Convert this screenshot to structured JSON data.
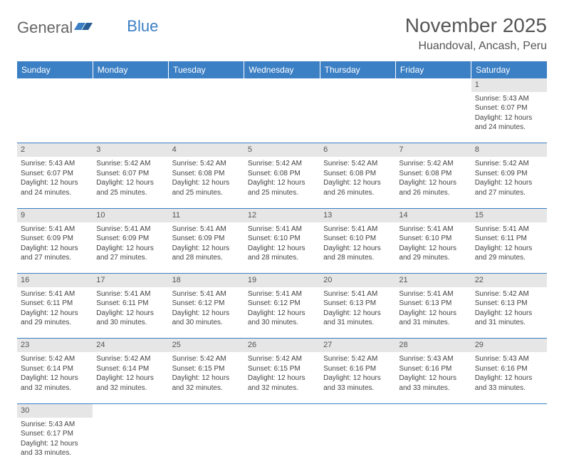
{
  "logo": {
    "general": "General",
    "blue": "Blue"
  },
  "title": "November 2025",
  "location": "Huandoval, Ancash, Peru",
  "colors": {
    "header_bg": "#3b7fc4",
    "header_text": "#ffffff",
    "daynum_bg": "#e6e6e6",
    "border": "#3b7fc4",
    "text": "#444444"
  },
  "weekdays": [
    "Sunday",
    "Monday",
    "Tuesday",
    "Wednesday",
    "Thursday",
    "Friday",
    "Saturday"
  ],
  "weeks": [
    [
      null,
      null,
      null,
      null,
      null,
      null,
      {
        "n": "1",
        "sr": "Sunrise: 5:43 AM",
        "ss": "Sunset: 6:07 PM",
        "dl": "Daylight: 12 hours and 24 minutes."
      }
    ],
    [
      {
        "n": "2",
        "sr": "Sunrise: 5:43 AM",
        "ss": "Sunset: 6:07 PM",
        "dl": "Daylight: 12 hours and 24 minutes."
      },
      {
        "n": "3",
        "sr": "Sunrise: 5:42 AM",
        "ss": "Sunset: 6:07 PM",
        "dl": "Daylight: 12 hours and 25 minutes."
      },
      {
        "n": "4",
        "sr": "Sunrise: 5:42 AM",
        "ss": "Sunset: 6:08 PM",
        "dl": "Daylight: 12 hours and 25 minutes."
      },
      {
        "n": "5",
        "sr": "Sunrise: 5:42 AM",
        "ss": "Sunset: 6:08 PM",
        "dl": "Daylight: 12 hours and 25 minutes."
      },
      {
        "n": "6",
        "sr": "Sunrise: 5:42 AM",
        "ss": "Sunset: 6:08 PM",
        "dl": "Daylight: 12 hours and 26 minutes."
      },
      {
        "n": "7",
        "sr": "Sunrise: 5:42 AM",
        "ss": "Sunset: 6:08 PM",
        "dl": "Daylight: 12 hours and 26 minutes."
      },
      {
        "n": "8",
        "sr": "Sunrise: 5:42 AM",
        "ss": "Sunset: 6:09 PM",
        "dl": "Daylight: 12 hours and 27 minutes."
      }
    ],
    [
      {
        "n": "9",
        "sr": "Sunrise: 5:41 AM",
        "ss": "Sunset: 6:09 PM",
        "dl": "Daylight: 12 hours and 27 minutes."
      },
      {
        "n": "10",
        "sr": "Sunrise: 5:41 AM",
        "ss": "Sunset: 6:09 PM",
        "dl": "Daylight: 12 hours and 27 minutes."
      },
      {
        "n": "11",
        "sr": "Sunrise: 5:41 AM",
        "ss": "Sunset: 6:09 PM",
        "dl": "Daylight: 12 hours and 28 minutes."
      },
      {
        "n": "12",
        "sr": "Sunrise: 5:41 AM",
        "ss": "Sunset: 6:10 PM",
        "dl": "Daylight: 12 hours and 28 minutes."
      },
      {
        "n": "13",
        "sr": "Sunrise: 5:41 AM",
        "ss": "Sunset: 6:10 PM",
        "dl": "Daylight: 12 hours and 28 minutes."
      },
      {
        "n": "14",
        "sr": "Sunrise: 5:41 AM",
        "ss": "Sunset: 6:10 PM",
        "dl": "Daylight: 12 hours and 29 minutes."
      },
      {
        "n": "15",
        "sr": "Sunrise: 5:41 AM",
        "ss": "Sunset: 6:11 PM",
        "dl": "Daylight: 12 hours and 29 minutes."
      }
    ],
    [
      {
        "n": "16",
        "sr": "Sunrise: 5:41 AM",
        "ss": "Sunset: 6:11 PM",
        "dl": "Daylight: 12 hours and 29 minutes."
      },
      {
        "n": "17",
        "sr": "Sunrise: 5:41 AM",
        "ss": "Sunset: 6:11 PM",
        "dl": "Daylight: 12 hours and 30 minutes."
      },
      {
        "n": "18",
        "sr": "Sunrise: 5:41 AM",
        "ss": "Sunset: 6:12 PM",
        "dl": "Daylight: 12 hours and 30 minutes."
      },
      {
        "n": "19",
        "sr": "Sunrise: 5:41 AM",
        "ss": "Sunset: 6:12 PM",
        "dl": "Daylight: 12 hours and 30 minutes."
      },
      {
        "n": "20",
        "sr": "Sunrise: 5:41 AM",
        "ss": "Sunset: 6:13 PM",
        "dl": "Daylight: 12 hours and 31 minutes."
      },
      {
        "n": "21",
        "sr": "Sunrise: 5:41 AM",
        "ss": "Sunset: 6:13 PM",
        "dl": "Daylight: 12 hours and 31 minutes."
      },
      {
        "n": "22",
        "sr": "Sunrise: 5:42 AM",
        "ss": "Sunset: 6:13 PM",
        "dl": "Daylight: 12 hours and 31 minutes."
      }
    ],
    [
      {
        "n": "23",
        "sr": "Sunrise: 5:42 AM",
        "ss": "Sunset: 6:14 PM",
        "dl": "Daylight: 12 hours and 32 minutes."
      },
      {
        "n": "24",
        "sr": "Sunrise: 5:42 AM",
        "ss": "Sunset: 6:14 PM",
        "dl": "Daylight: 12 hours and 32 minutes."
      },
      {
        "n": "25",
        "sr": "Sunrise: 5:42 AM",
        "ss": "Sunset: 6:15 PM",
        "dl": "Daylight: 12 hours and 32 minutes."
      },
      {
        "n": "26",
        "sr": "Sunrise: 5:42 AM",
        "ss": "Sunset: 6:15 PM",
        "dl": "Daylight: 12 hours and 32 minutes."
      },
      {
        "n": "27",
        "sr": "Sunrise: 5:42 AM",
        "ss": "Sunset: 6:16 PM",
        "dl": "Daylight: 12 hours and 33 minutes."
      },
      {
        "n": "28",
        "sr": "Sunrise: 5:43 AM",
        "ss": "Sunset: 6:16 PM",
        "dl": "Daylight: 12 hours and 33 minutes."
      },
      {
        "n": "29",
        "sr": "Sunrise: 5:43 AM",
        "ss": "Sunset: 6:16 PM",
        "dl": "Daylight: 12 hours and 33 minutes."
      }
    ],
    [
      {
        "n": "30",
        "sr": "Sunrise: 5:43 AM",
        "ss": "Sunset: 6:17 PM",
        "dl": "Daylight: 12 hours and 33 minutes."
      },
      null,
      null,
      null,
      null,
      null,
      null
    ]
  ]
}
